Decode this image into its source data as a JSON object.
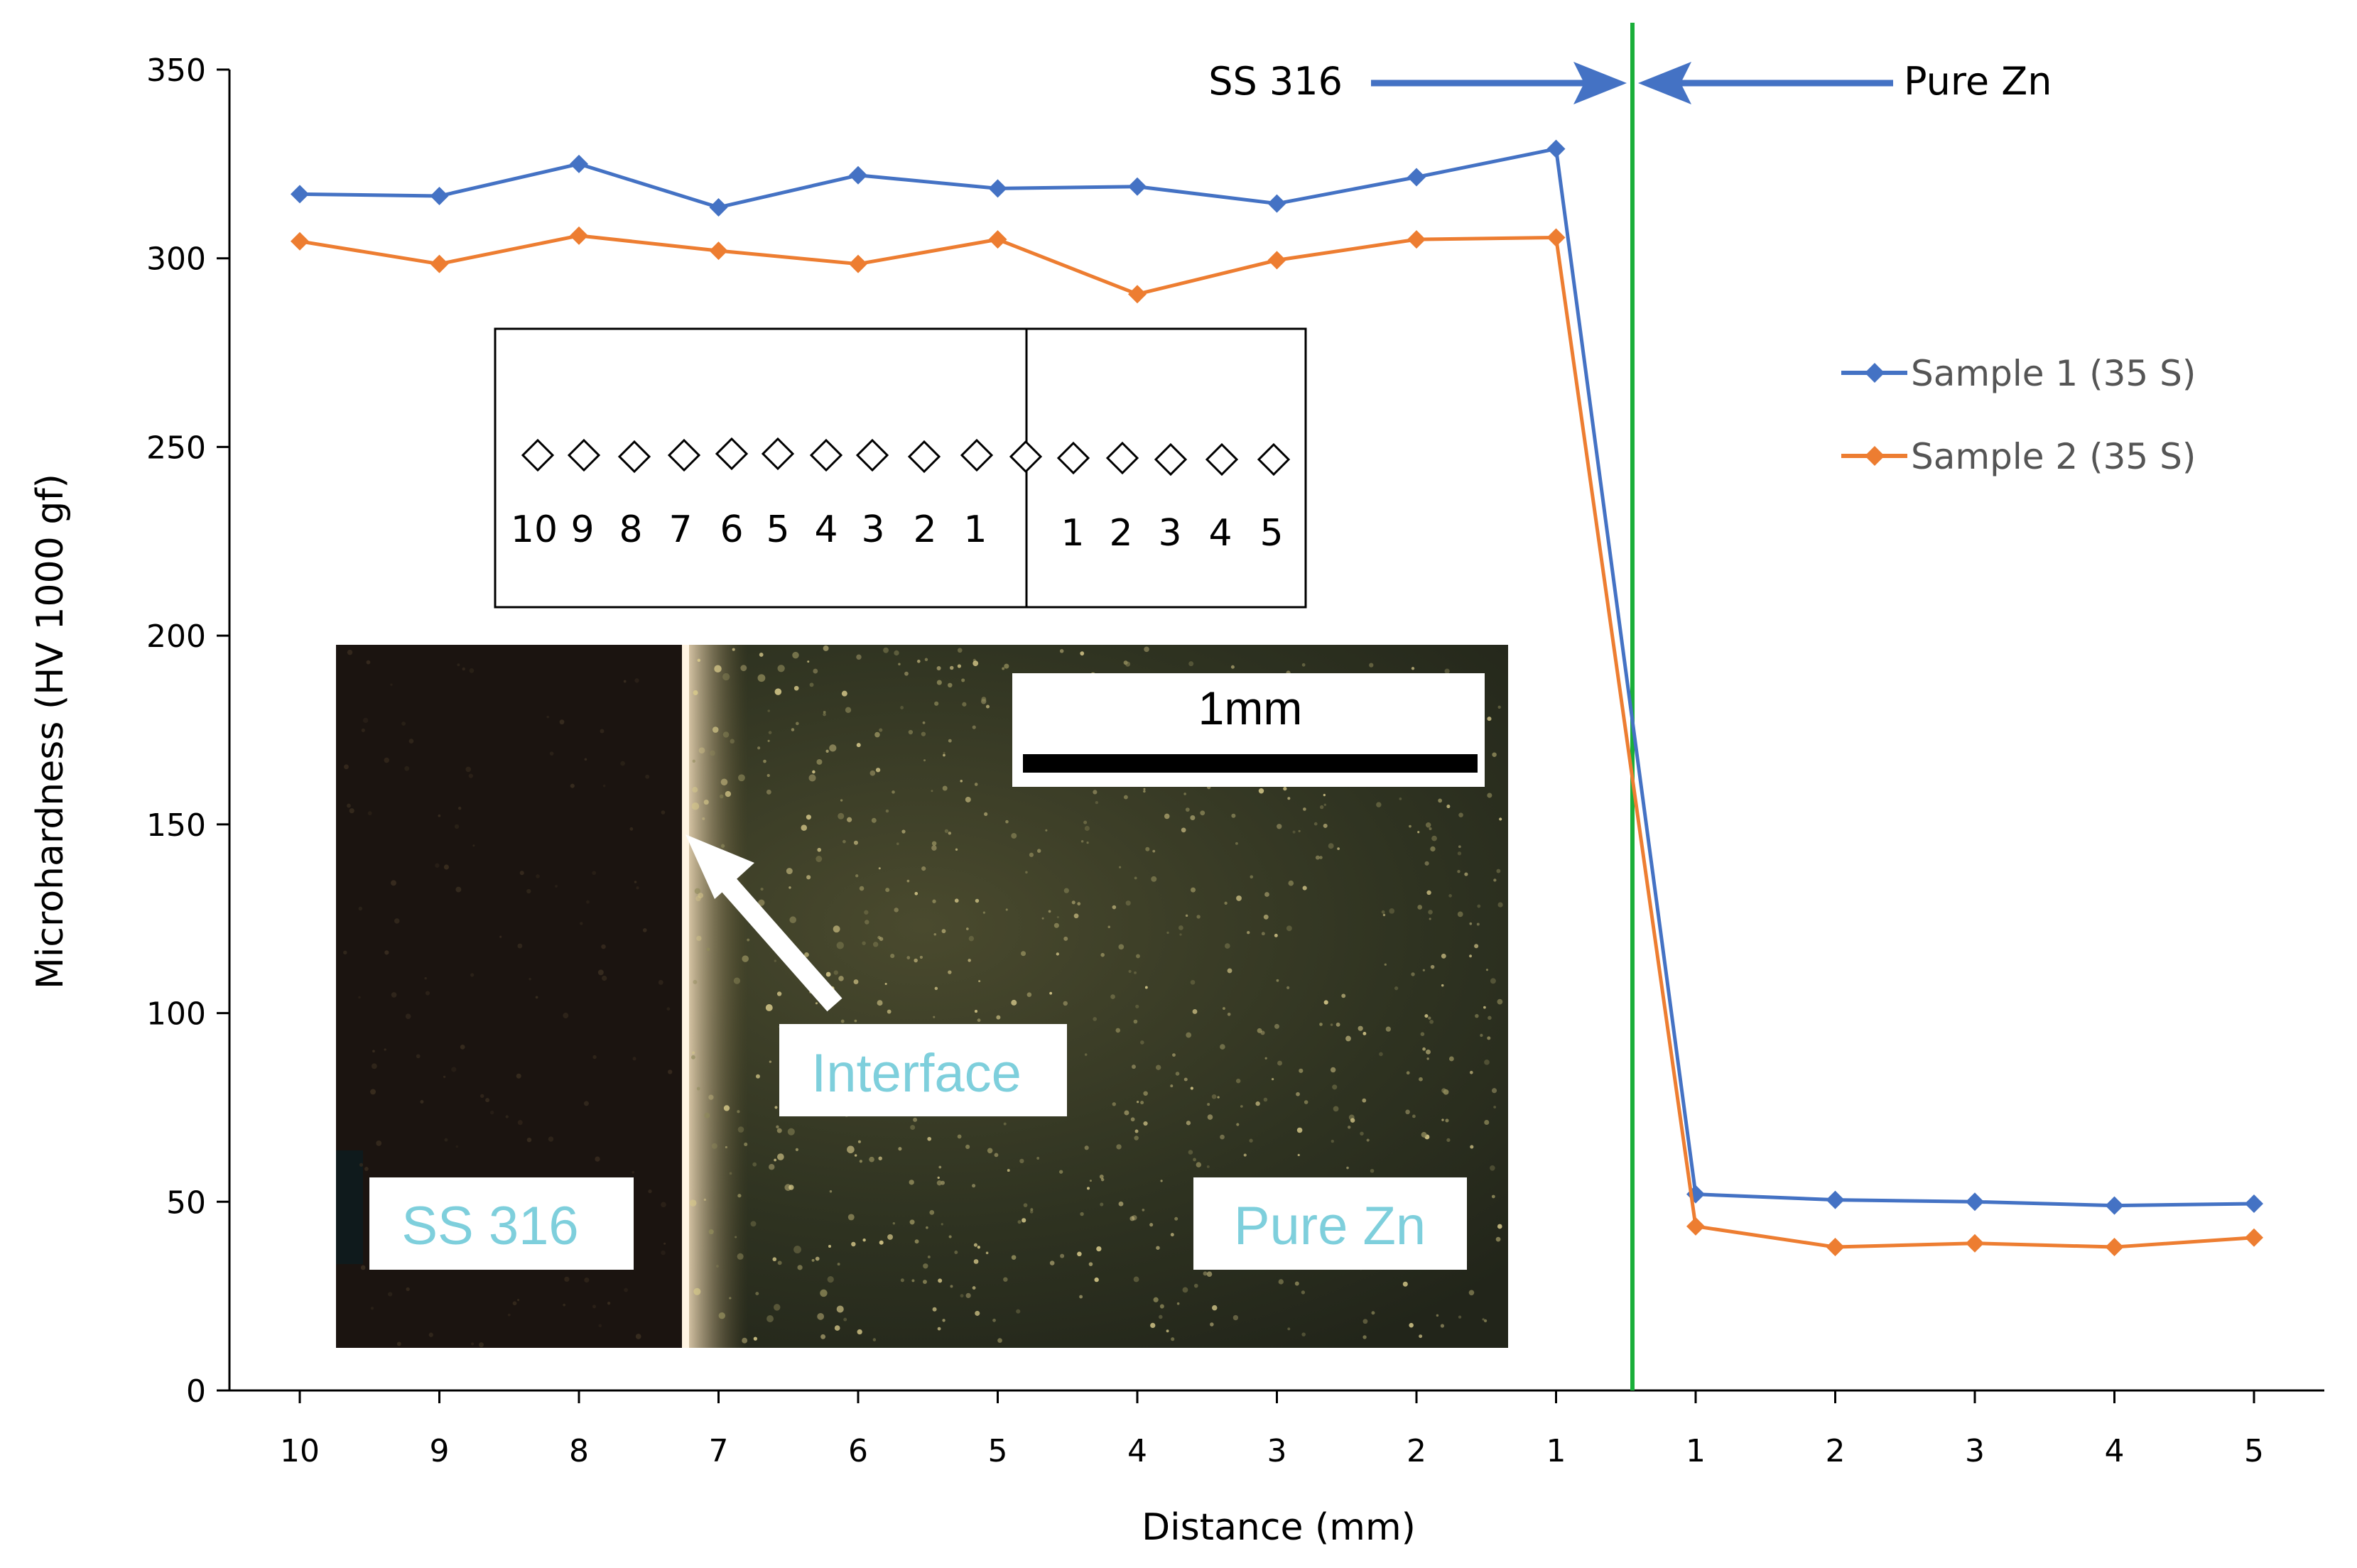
{
  "chart_data": {
    "type": "line",
    "title": "",
    "xlabel": "Distance (mm)",
    "ylabel": "Microhardness  (HV 1000 gf)",
    "ylim": [
      0,
      350
    ],
    "yticks": [
      "0",
      "50",
      "100",
      "150",
      "200",
      "250",
      "300",
      "350"
    ],
    "categories": [
      "10",
      "9",
      "8",
      "7",
      "6",
      "5",
      "4",
      "3",
      "2",
      "1",
      "1",
      "2",
      "3",
      "4",
      "5"
    ],
    "series": [
      {
        "name": "Sample 1 (35 S)",
        "color": "#4472c4",
        "values": [
          317,
          316.5,
          325,
          313.5,
          322,
          318.5,
          319,
          314.5,
          321.5,
          329,
          52,
          50.5,
          50,
          49,
          49.5
        ]
      },
      {
        "name": "Sample 2 (35 S)",
        "color": "#ed7d31",
        "values": [
          304.5,
          298.5,
          306,
          302,
          298.5,
          305,
          290.5,
          299.5,
          305,
          305.5,
          43.5,
          38,
          39,
          38,
          40.5
        ]
      }
    ],
    "interface_line_color": "#1aaf3a",
    "annotations": {
      "left_region": "SS 316",
      "right_region": "Pure Zn"
    },
    "legend_position": "right"
  },
  "inset_schematic": {
    "left_numbers": [
      "10",
      "9",
      "8",
      "7",
      "6",
      "5",
      "4",
      "3",
      "2",
      "1"
    ],
    "right_numbers": [
      "1",
      "2",
      "3",
      "4",
      "5"
    ]
  },
  "micrograph": {
    "scale_bar_label": "1mm",
    "interface_label": "Interface",
    "left_label": "SS 316",
    "right_label": "Pure Zn"
  }
}
